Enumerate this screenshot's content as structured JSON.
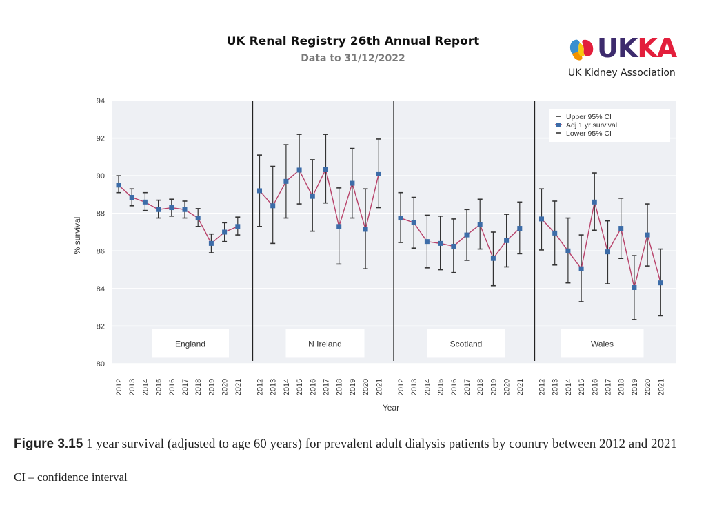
{
  "header": {
    "title": "UK Renal Registry 26th Annual Report",
    "subtitle": "Data to 31/12/2022"
  },
  "logo": {
    "word_u": "U",
    "word_k1": "K",
    "word_k2": "K",
    "word_a": "A",
    "name": "UK Kidney Association",
    "colors": {
      "purple": "#3d2b6d",
      "red": "#e31f3c",
      "orange": "#f39200",
      "blue": "#3a8fd0",
      "yellow": "#f9c80e"
    }
  },
  "caption": {
    "figure_label": "Figure 3.15",
    "text": " 1 year survival (adjusted to age 60 years) for prevalent adult dialysis patients by country between 2012 and 2021",
    "note": "CI – confidence interval"
  },
  "chart_data": {
    "type": "line",
    "title": "",
    "xlabel": "Year",
    "ylabel": "% survival",
    "ylim": [
      80,
      94
    ],
    "yticks": [
      80,
      82,
      84,
      86,
      88,
      90,
      92,
      94
    ],
    "grid": true,
    "legend_position": "top-right",
    "legend": [
      "Upper 95% CI",
      "Adj 1 yr survival",
      "Lower 95% CI"
    ],
    "colors": {
      "line": "#b8426a",
      "marker": "#3c6ca8",
      "errorbar": "#333333",
      "panel_bg": "#eef0f4",
      "grid": "#ffffff",
      "divider": "#222222"
    },
    "years": [
      "2012",
      "2013",
      "2014",
      "2015",
      "2016",
      "2017",
      "2018",
      "2019",
      "2020",
      "2021"
    ],
    "panels": [
      {
        "name": "England",
        "survival": [
          89.5,
          88.85,
          88.6,
          88.2,
          88.3,
          88.2,
          87.75,
          86.4,
          87.0,
          87.3
        ],
        "upper_ci": [
          90.0,
          89.3,
          89.1,
          88.7,
          88.75,
          88.65,
          88.25,
          86.9,
          87.5,
          87.8
        ],
        "lower_ci": [
          89.1,
          88.4,
          88.15,
          87.75,
          87.85,
          87.75,
          87.3,
          85.9,
          86.5,
          86.85
        ]
      },
      {
        "name": "N Ireland",
        "survival": [
          89.2,
          88.4,
          89.7,
          90.3,
          88.9,
          90.35,
          87.3,
          89.6,
          87.15,
          90.1
        ],
        "upper_ci": [
          91.1,
          90.5,
          91.65,
          92.2,
          90.85,
          92.2,
          89.35,
          91.45,
          89.3,
          91.95
        ],
        "lower_ci": [
          87.3,
          86.4,
          87.75,
          88.5,
          87.05,
          88.55,
          85.3,
          87.75,
          85.05,
          88.3
        ]
      },
      {
        "name": "Scotland",
        "survival": [
          87.75,
          87.5,
          86.5,
          86.4,
          86.25,
          86.85,
          87.4,
          85.6,
          86.55,
          87.2
        ],
        "upper_ci": [
          89.1,
          88.85,
          87.9,
          87.85,
          87.7,
          88.2,
          88.75,
          87.0,
          87.95,
          88.6
        ],
        "lower_ci": [
          86.45,
          86.15,
          85.1,
          85.0,
          84.85,
          85.5,
          86.1,
          84.15,
          85.15,
          85.85
        ]
      },
      {
        "name": "Wales",
        "survival": [
          87.7,
          86.95,
          86.0,
          85.05,
          88.6,
          85.95,
          87.2,
          84.05,
          86.85,
          84.3
        ],
        "upper_ci": [
          89.3,
          88.65,
          87.75,
          86.85,
          90.15,
          87.6,
          88.8,
          85.75,
          88.5,
          86.1
        ],
        "lower_ci": [
          86.05,
          85.25,
          84.3,
          83.3,
          87.1,
          84.25,
          85.6,
          82.35,
          85.2,
          82.55
        ]
      }
    ]
  }
}
